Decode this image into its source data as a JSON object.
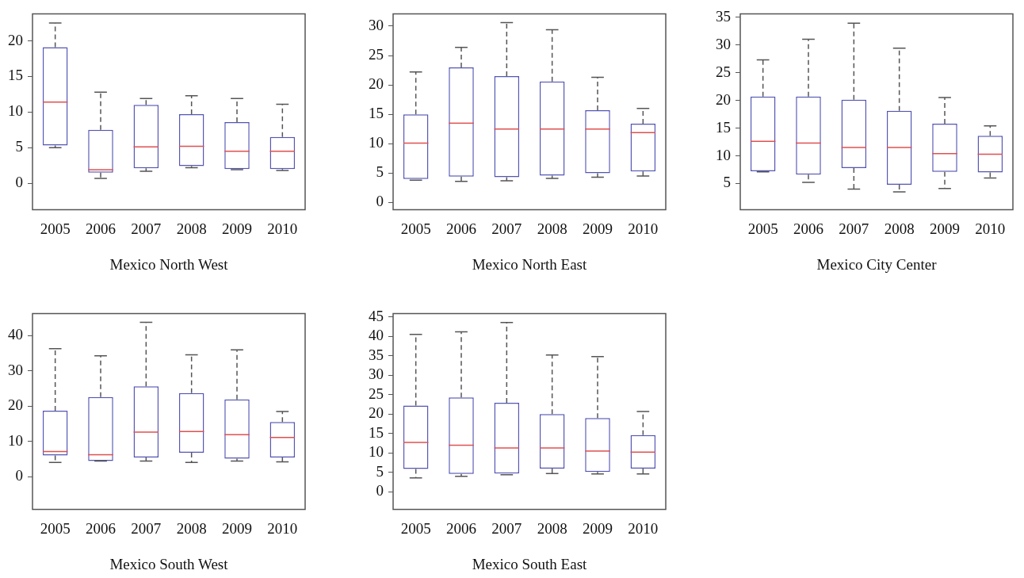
{
  "chart_data": [
    {
      "type": "box",
      "xlabel": "Mexico North West",
      "categories": [
        "2005",
        "2006",
        "2007",
        "2008",
        "2009",
        "2010"
      ],
      "ylim": [
        -3.7,
        23.8
      ],
      "yticks": [
        0,
        5,
        10,
        15,
        20
      ],
      "grid": false,
      "color": "#5555b5",
      "boxes": [
        {
          "low": 5.0,
          "q1": 5.3,
          "median": 11.4,
          "q3": 19.1,
          "high": 22.5
        },
        {
          "low": 0.7,
          "q1": 1.5,
          "median": 1.9,
          "q3": 7.5,
          "high": 12.8
        },
        {
          "low": 1.7,
          "q1": 2.1,
          "median": 5.1,
          "q3": 11.0,
          "high": 11.9
        },
        {
          "low": 2.2,
          "q1": 2.4,
          "median": 5.2,
          "q3": 9.7,
          "high": 12.3
        },
        {
          "low": 1.9,
          "q1": 2.0,
          "median": 4.5,
          "q3": 8.6,
          "high": 11.9
        },
        {
          "low": 1.8,
          "q1": 2.0,
          "median": 4.5,
          "q3": 6.5,
          "high": 11.1
        }
      ]
    },
    {
      "type": "box",
      "xlabel": "Mexico North East",
      "categories": [
        "2005",
        "2006",
        "2007",
        "2008",
        "2009",
        "2010"
      ],
      "ylim": [
        -1.2,
        32.1
      ],
      "yticks": [
        0,
        5,
        10,
        15,
        20,
        25,
        30
      ],
      "grid": false,
      "color": "#5555b5",
      "boxes": [
        {
          "low": 3.8,
          "q1": 4.0,
          "median": 10.1,
          "q3": 15.0,
          "high": 22.2
        },
        {
          "low": 3.6,
          "q1": 4.4,
          "median": 13.5,
          "q3": 23.0,
          "high": 26.4
        },
        {
          "low": 3.7,
          "q1": 4.3,
          "median": 12.5,
          "q3": 21.5,
          "high": 30.6
        },
        {
          "low": 4.1,
          "q1": 4.6,
          "median": 12.5,
          "q3": 20.6,
          "high": 29.4
        },
        {
          "low": 4.3,
          "q1": 5.0,
          "median": 12.5,
          "q3": 15.7,
          "high": 21.3
        },
        {
          "low": 4.5,
          "q1": 5.3,
          "median": 11.9,
          "q3": 13.4,
          "high": 16.0
        }
      ]
    },
    {
      "type": "box",
      "xlabel": "Mexico City Center",
      "categories": [
        "2005",
        "2006",
        "2007",
        "2008",
        "2009",
        "2010"
      ],
      "ylim": [
        0.3,
        35.6
      ],
      "yticks": [
        5,
        10,
        15,
        20,
        25,
        30,
        35
      ],
      "grid": false,
      "color": "#5555b5",
      "boxes": [
        {
          "low": 7.1,
          "q1": 7.2,
          "median": 12.6,
          "q3": 20.7,
          "high": 27.3
        },
        {
          "low": 5.2,
          "q1": 6.6,
          "median": 12.3,
          "q3": 20.7,
          "high": 31.0
        },
        {
          "low": 4.0,
          "q1": 7.8,
          "median": 11.5,
          "q3": 20.1,
          "high": 33.9
        },
        {
          "low": 3.5,
          "q1": 4.8,
          "median": 11.5,
          "q3": 18.1,
          "high": 29.4
        },
        {
          "low": 4.1,
          "q1": 7.1,
          "median": 10.4,
          "q3": 15.8,
          "high": 20.5
        },
        {
          "low": 6.0,
          "q1": 7.0,
          "median": 10.3,
          "q3": 13.6,
          "high": 15.4
        }
      ]
    },
    {
      "type": "box",
      "xlabel": "Mexico South West",
      "categories": [
        "2005",
        "2006",
        "2007",
        "2008",
        "2009",
        "2010"
      ],
      "ylim": [
        -9.3,
        46.3
      ],
      "yticks": [
        0,
        10,
        20,
        30,
        40
      ],
      "grid": false,
      "color": "#5555b5",
      "boxes": [
        {
          "low": 4.0,
          "q1": 6.0,
          "median": 7.1,
          "q3": 18.7,
          "high": 36.3
        },
        {
          "low": 4.4,
          "q1": 4.4,
          "median": 6.2,
          "q3": 22.6,
          "high": 34.3
        },
        {
          "low": 4.4,
          "q1": 5.4,
          "median": 12.6,
          "q3": 25.6,
          "high": 43.8
        },
        {
          "low": 4.0,
          "q1": 6.8,
          "median": 12.8,
          "q3": 23.7,
          "high": 34.6
        },
        {
          "low": 4.4,
          "q1": 5.1,
          "median": 11.9,
          "q3": 21.9,
          "high": 36.0
        },
        {
          "low": 4.2,
          "q1": 5.4,
          "median": 11.1,
          "q3": 15.5,
          "high": 18.5
        }
      ]
    },
    {
      "type": "box",
      "xlabel": "Mexico South East",
      "categories": [
        "2005",
        "2006",
        "2007",
        "2008",
        "2009",
        "2010"
      ],
      "ylim": [
        -4.5,
        45.9
      ],
      "yticks": [
        0,
        5,
        10,
        15,
        20,
        25,
        30,
        35,
        40,
        45
      ],
      "grid": false,
      "color": "#5555b5",
      "boxes": [
        {
          "low": 3.6,
          "q1": 5.9,
          "median": 12.7,
          "q3": 22.2,
          "high": 40.5
        },
        {
          "low": 4.0,
          "q1": 4.6,
          "median": 12.0,
          "q3": 24.3,
          "high": 41.2
        },
        {
          "low": 4.4,
          "q1": 4.7,
          "median": 11.3,
          "q3": 22.9,
          "high": 43.6
        },
        {
          "low": 4.7,
          "q1": 6.0,
          "median": 11.3,
          "q3": 20.0,
          "high": 35.2
        },
        {
          "low": 4.6,
          "q1": 5.1,
          "median": 10.5,
          "q3": 19.0,
          "high": 34.8
        },
        {
          "low": 4.6,
          "q1": 6.0,
          "median": 10.2,
          "q3": 14.6,
          "high": 20.7
        }
      ]
    }
  ]
}
